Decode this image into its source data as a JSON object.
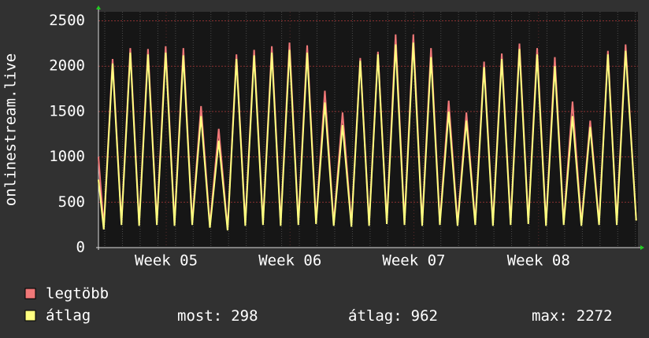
{
  "chart_data": {
    "type": "line",
    "y_label": "onlinestream.live",
    "x": [
      0,
      0.3,
      0.8,
      1.3,
      1.8,
      2.3,
      2.8,
      3.3,
      3.8,
      4.3,
      4.8,
      5.3,
      5.8,
      6.3,
      6.8,
      7.3,
      7.8,
      8.3,
      8.8,
      9.3,
      9.8,
      10.3,
      10.8,
      11.3,
      11.8,
      12.3,
      12.8,
      13.3,
      13.8,
      14.3,
      14.8,
      15.3,
      15.8,
      16.3,
      16.8,
      17.3,
      17.8,
      18.3,
      18.8,
      19.3,
      19.8,
      20.3,
      20.8,
      21.3,
      21.8,
      22.3,
      22.8,
      23.3,
      23.8,
      24.3,
      24.8,
      25.3,
      25.8,
      26.3,
      26.8,
      27.3,
      27.8,
      28.3,
      28.8,
      29.3,
      29.8,
      30.4
    ],
    "series": [
      {
        "name": "legtöbb",
        "color": "#f07878",
        "values": [
          1000,
          230,
          2080,
          280,
          2200,
          270,
          2190,
          280,
          2220,
          270,
          2200,
          280,
          1560,
          250,
          1310,
          210,
          2130,
          270,
          2180,
          280,
          2220,
          270,
          2260,
          280,
          2230,
          290,
          1730,
          270,
          1490,
          260,
          2090,
          270,
          2160,
          290,
          2350,
          280,
          2350,
          270,
          2200,
          280,
          1620,
          270,
          1490,
          280,
          2050,
          270,
          2140,
          280,
          2250,
          290,
          2200,
          270,
          2100,
          280,
          1610,
          270,
          1400,
          280,
          2170,
          280,
          2240,
          300
        ]
      },
      {
        "name": "átlag",
        "color": "#ffff80",
        "values": [
          750,
          200,
          2030,
          250,
          2150,
          240,
          2130,
          250,
          2150,
          240,
          2120,
          250,
          1450,
          220,
          1180,
          190,
          2080,
          240,
          2120,
          250,
          2150,
          240,
          2180,
          250,
          2150,
          260,
          1600,
          240,
          1350,
          230,
          2060,
          240,
          2130,
          260,
          2240,
          250,
          2260,
          240,
          2100,
          250,
          1500,
          240,
          1400,
          250,
          1990,
          240,
          2080,
          250,
          2190,
          260,
          2130,
          240,
          2000,
          250,
          1450,
          240,
          1330,
          250,
          2130,
          250,
          2170,
          298
        ]
      }
    ],
    "xlim": [
      0,
      30.5
    ],
    "xticks": [
      {
        "value": 3.83,
        "label": "Week 05"
      },
      {
        "value": 10.83,
        "label": "Week 06"
      },
      {
        "value": 17.83,
        "label": "Week 07"
      },
      {
        "value": 24.88,
        "label": "Week 08"
      }
    ],
    "ylim": [
      0,
      2600
    ],
    "yticks": [
      0,
      500,
      1000,
      1500,
      2000,
      2500
    ],
    "grid": true,
    "stats": [
      {
        "label": "most:",
        "value": 298
      },
      {
        "label": "átlag:",
        "value": 962
      },
      {
        "label": "max:",
        "value": 2272
      }
    ]
  }
}
